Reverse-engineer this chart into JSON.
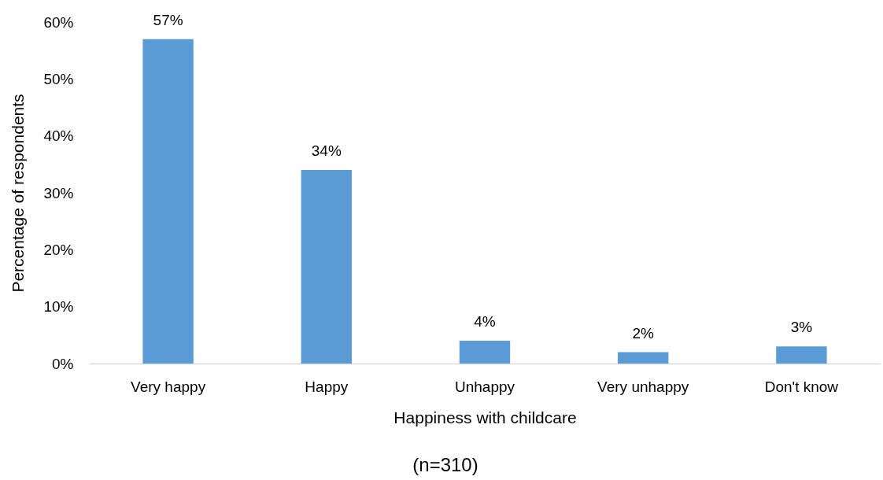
{
  "chart_data": {
    "type": "bar",
    "categories": [
      "Very happy",
      "Happy",
      "Unhappy",
      "Very unhappy",
      "Don't know"
    ],
    "values": [
      57,
      34,
      4,
      2,
      3
    ],
    "value_labels": [
      "57%",
      "34%",
      "4%",
      "2%",
      "3%"
    ],
    "color": "#5b9bd5",
    "xlabel": "Happiness with childcare",
    "ylabel": "Percentage of respondents",
    "ylim": [
      0,
      60
    ],
    "yticks": [
      {
        "value": 0,
        "label": "0%"
      },
      {
        "value": 10,
        "label": "10%"
      },
      {
        "value": 20,
        "label": "20%"
      },
      {
        "value": 30,
        "label": "30%"
      },
      {
        "value": 40,
        "label": "40%"
      },
      {
        "value": 50,
        "label": "50%"
      },
      {
        "value": 60,
        "label": "60%"
      }
    ],
    "grid": false,
    "annotations": [
      "(n=310)"
    ]
  }
}
